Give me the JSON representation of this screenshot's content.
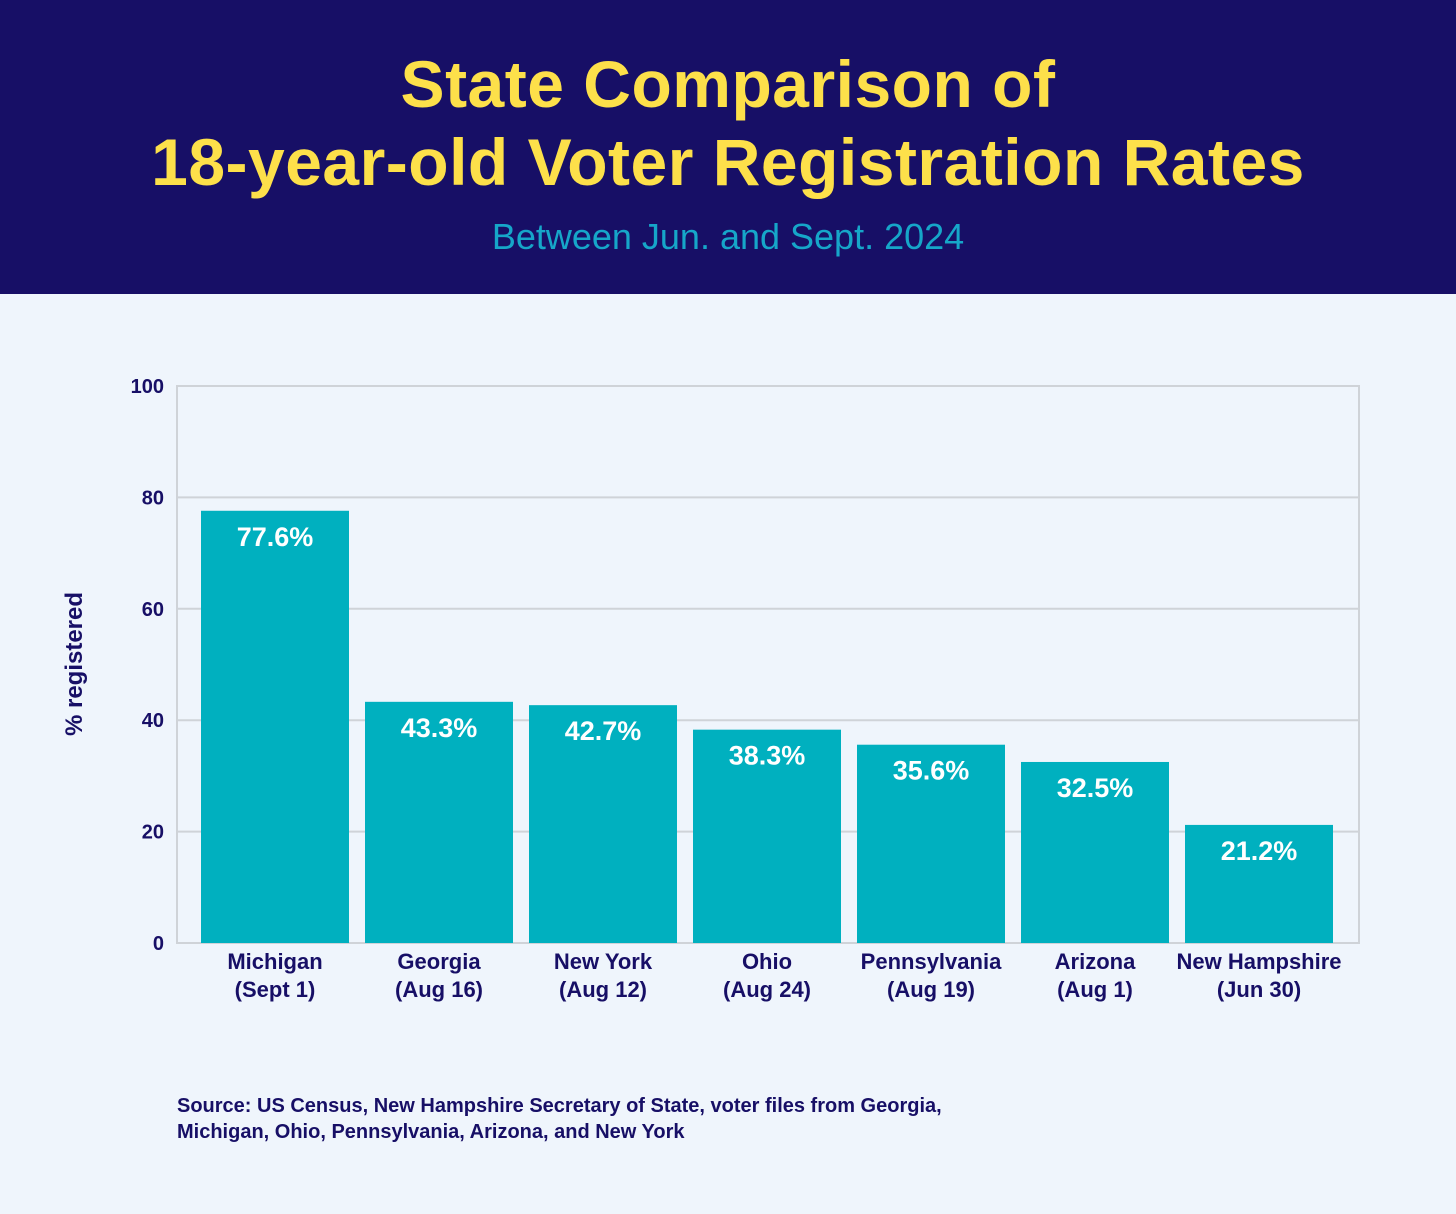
{
  "header": {
    "title_line1": "State Comparison of",
    "title_line2": "18-year-old Voter Registration Rates",
    "subtitle": "Between Jun. and Sept. 2024"
  },
  "colors": {
    "header_bg": "#170f66",
    "title": "#fde04a",
    "subtitle": "#16a6c9",
    "bar": "#00b0bf",
    "bar_label": "#ffffff",
    "axis_text": "#170f66",
    "grid": "#cfd3d8",
    "background": "#eff5fc"
  },
  "chart_data": {
    "type": "bar",
    "title": "State Comparison of 18-year-old Voter Registration Rates",
    "subtitle": "Between Jun. and Sept. 2024",
    "categories": [
      [
        "Michigan",
        "(Sept 1)"
      ],
      [
        "Georgia",
        "(Aug 16)"
      ],
      [
        "New York",
        "(Aug 12)"
      ],
      [
        "Ohio",
        "(Aug 24)"
      ],
      [
        "Pennsylvania",
        "(Aug 19)"
      ],
      [
        "Arizona",
        "(Aug 1)"
      ],
      [
        "New Hampshire",
        "(Jun 30)"
      ]
    ],
    "values": [
      77.6,
      43.3,
      42.7,
      38.3,
      35.6,
      32.5,
      21.2
    ],
    "data_labels": [
      "77.6%",
      "43.3%",
      "42.7%",
      "38.3%",
      "35.6%",
      "32.5%",
      "21.2%"
    ],
    "xlabel": "",
    "ylabel": "% registered",
    "ylim": [
      0,
      100
    ],
    "yticks": [
      0,
      20,
      40,
      60,
      80,
      100
    ],
    "grid": true,
    "legend": "none"
  },
  "footer": {
    "source_line1": "Source: US Census, New Hampshire Secretary of State, voter files from Georgia,",
    "source_line2": "Michigan, Ohio, Pennsylvania, Arizona, and New York"
  }
}
